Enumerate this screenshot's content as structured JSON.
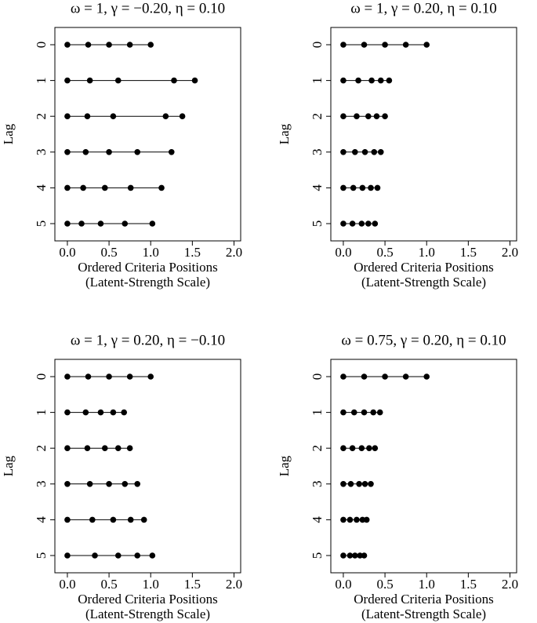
{
  "chart_data": [
    {
      "type": "dot",
      "title": "ω = 1, γ = −0.20, η = 0.10",
      "xlabel": [
        "Ordered Criteria Positions",
        "(Latent-Strength Scale)"
      ],
      "ylabel": "Lag",
      "categories": [
        "0",
        "1",
        "2",
        "3",
        "4",
        "5"
      ],
      "values": [
        [
          0,
          0.25,
          0.5,
          0.75,
          1.0
        ],
        [
          0,
          0.27,
          0.61,
          1.28,
          1.53
        ],
        [
          0,
          0.24,
          0.55,
          1.18,
          1.38
        ],
        [
          0,
          0.22,
          0.5,
          0.84,
          1.25
        ],
        [
          0,
          0.19,
          0.45,
          0.76,
          1.13
        ],
        [
          0,
          0.17,
          0.4,
          0.69,
          1.02
        ]
      ],
      "color": "#000000",
      "xlim": [
        -0.15,
        2.08
      ],
      "xticks": [
        {
          "value": 0,
          "label": "0.0"
        },
        0.5,
        {
          "value": 1,
          "label": "1.0"
        },
        1.5,
        {
          "value": 2,
          "label": "2.0"
        }
      ]
    },
    {
      "type": "dot",
      "title": "ω = 1, γ = 0.20, η = 0.10",
      "xlabel": [
        "Ordered Criteria Positions",
        "(Latent-Strength Scale)"
      ],
      "ylabel": "Lag",
      "categories": [
        "0",
        "1",
        "2",
        "3",
        "4",
        "5"
      ],
      "values": [
        [
          0,
          0.25,
          0.5,
          0.75,
          1.0
        ],
        [
          0,
          0.18,
          0.34,
          0.45,
          0.55
        ],
        [
          0,
          0.16,
          0.3,
          0.4,
          0.5
        ],
        [
          0,
          0.14,
          0.26,
          0.37,
          0.45
        ],
        [
          0,
          0.12,
          0.23,
          0.33,
          0.41
        ],
        [
          0,
          0.11,
          0.22,
          0.3,
          0.38
        ]
      ],
      "color": "#000000",
      "xlim": [
        -0.15,
        2.08
      ],
      "xticks": [
        {
          "value": 0,
          "label": "0.0"
        },
        0.5,
        {
          "value": 1,
          "label": "1.0"
        },
        1.5,
        {
          "value": 2,
          "label": "2.0"
        }
      ]
    },
    {
      "type": "dot",
      "title": "ω = 1, γ = 0.20, η = −0.10",
      "xlabel": [
        "Ordered Criteria Positions",
        "(Latent-Strength Scale)"
      ],
      "ylabel": "Lag",
      "categories": [
        "0",
        "1",
        "2",
        "3",
        "4",
        "5"
      ],
      "values": [
        [
          0,
          0.25,
          0.5,
          0.75,
          1.0
        ],
        [
          0,
          0.22,
          0.4,
          0.55,
          0.68
        ],
        [
          0,
          0.24,
          0.45,
          0.61,
          0.75
        ],
        [
          0,
          0.27,
          0.5,
          0.69,
          0.84
        ],
        [
          0,
          0.3,
          0.55,
          0.76,
          0.92
        ],
        [
          0,
          0.33,
          0.61,
          0.84,
          1.02
        ]
      ],
      "color": "#000000",
      "xlim": [
        -0.15,
        2.08
      ],
      "xticks": [
        {
          "value": 0,
          "label": "0.0"
        },
        0.5,
        {
          "value": 1,
          "label": "1.0"
        },
        1.5,
        {
          "value": 2,
          "label": "2.0"
        }
      ]
    },
    {
      "type": "dot",
      "title": "ω = 0.75, γ = 0.20, η = 0.10",
      "xlabel": [
        "Ordered Criteria Positions",
        "(Latent-Strength Scale)"
      ],
      "ylabel": "Lag",
      "categories": [
        "0",
        "1",
        "2",
        "3",
        "4",
        "5"
      ],
      "values": [
        [
          0,
          0.25,
          0.5,
          0.75,
          1.0
        ],
        [
          0,
          0.13,
          0.25,
          0.36,
          0.44
        ],
        [
          0,
          0.11,
          0.22,
          0.31,
          0.38
        ],
        [
          0,
          0.09,
          0.19,
          0.26,
          0.33
        ],
        [
          0,
          0.08,
          0.16,
          0.23,
          0.28
        ],
        [
          0,
          0.08,
          0.14,
          0.2,
          0.25
        ]
      ],
      "color": "#000000",
      "xlim": [
        -0.15,
        2.08
      ],
      "xticks": [
        {
          "value": 0,
          "label": "0.0"
        },
        0.5,
        {
          "value": 1,
          "label": "1.0"
        },
        1.5,
        {
          "value": 2,
          "label": "2.0"
        }
      ]
    }
  ]
}
